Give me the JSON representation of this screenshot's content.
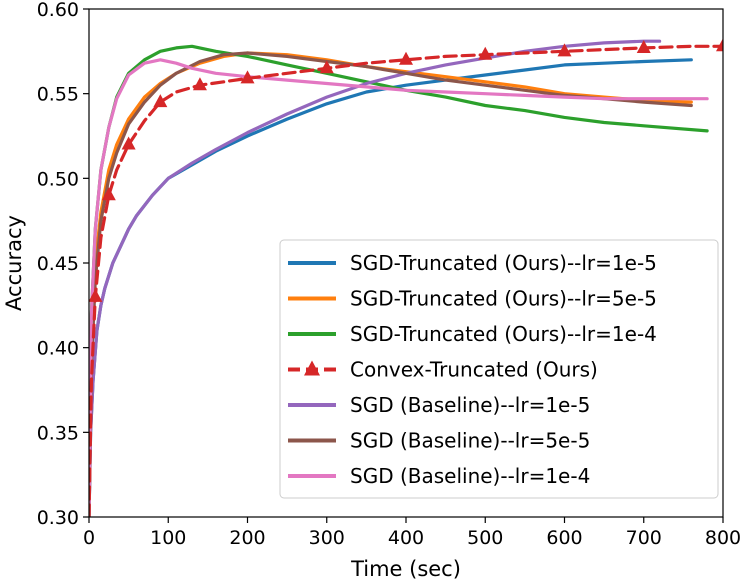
{
  "chart_data": {
    "type": "line",
    "title": "",
    "xlabel": "Time (sec)",
    "ylabel": "Accuracy",
    "xlim": [
      0,
      800
    ],
    "ylim": [
      0.3,
      0.6
    ],
    "xticks": [
      0,
      100,
      200,
      300,
      400,
      500,
      600,
      700,
      800
    ],
    "yticks": [
      0.3,
      0.35,
      0.4,
      0.45,
      0.5,
      0.55,
      0.6
    ],
    "xtick_labels": [
      "0",
      "100",
      "200",
      "300",
      "400",
      "500",
      "600",
      "700",
      "800"
    ],
    "ytick_labels": [
      "0.30",
      "0.35",
      "0.40",
      "0.45",
      "0.50",
      "0.55",
      "0.60"
    ],
    "grid": false,
    "legend_position": "lower-right",
    "series": [
      {
        "name": "SGD-Truncated (Ours)--lr=1e-5",
        "color": "#1f77b4",
        "style": "solid",
        "marker": "none",
        "x": [
          0,
          2,
          5,
          10,
          15,
          20,
          30,
          40,
          50,
          60,
          80,
          100,
          130,
          160,
          200,
          250,
          300,
          350,
          400,
          450,
          500,
          550,
          600,
          650,
          700,
          760
        ],
        "y": [
          0.3,
          0.35,
          0.38,
          0.41,
          0.425,
          0.435,
          0.45,
          0.46,
          0.47,
          0.478,
          0.49,
          0.5,
          0.508,
          0.516,
          0.525,
          0.535,
          0.544,
          0.551,
          0.555,
          0.558,
          0.561,
          0.564,
          0.567,
          0.568,
          0.569,
          0.57
        ]
      },
      {
        "name": "SGD-Truncated (Ours)--lr=5e-5",
        "color": "#ff7f0e",
        "style": "solid",
        "marker": "none",
        "x": [
          0,
          3,
          8,
          15,
          25,
          35,
          50,
          70,
          90,
          110,
          140,
          170,
          200,
          250,
          300,
          350,
          400,
          450,
          500,
          550,
          600,
          650,
          700,
          760
        ],
        "y": [
          0.3,
          0.4,
          0.45,
          0.48,
          0.505,
          0.52,
          0.535,
          0.548,
          0.556,
          0.562,
          0.568,
          0.572,
          0.574,
          0.573,
          0.57,
          0.566,
          0.563,
          0.56,
          0.557,
          0.554,
          0.55,
          0.548,
          0.546,
          0.545
        ]
      },
      {
        "name": "SGD-Truncated (Ours)--lr=1e-4",
        "color": "#2ca02c",
        "style": "solid",
        "marker": "none",
        "x": [
          0,
          3,
          8,
          15,
          25,
          35,
          50,
          70,
          90,
          110,
          130,
          160,
          200,
          250,
          300,
          350,
          400,
          450,
          500,
          550,
          600,
          650,
          700,
          780
        ],
        "y": [
          0.3,
          0.42,
          0.47,
          0.505,
          0.53,
          0.548,
          0.562,
          0.57,
          0.575,
          0.577,
          0.578,
          0.575,
          0.572,
          0.567,
          0.562,
          0.557,
          0.552,
          0.548,
          0.543,
          0.54,
          0.536,
          0.533,
          0.531,
          0.528
        ]
      },
      {
        "name": "Convex-Truncated (Ours)",
        "color": "#d62728",
        "style": "dashed",
        "marker": "triangle",
        "x": [
          0,
          3,
          8,
          15,
          25,
          35,
          50,
          70,
          90,
          110,
          140,
          170,
          200,
          250,
          300,
          350,
          400,
          450,
          500,
          550,
          600,
          650,
          700,
          760,
          800
        ],
        "y": [
          0.3,
          0.38,
          0.43,
          0.465,
          0.49,
          0.505,
          0.52,
          0.534,
          0.545,
          0.551,
          0.555,
          0.557,
          0.559,
          0.562,
          0.565,
          0.568,
          0.57,
          0.572,
          0.573,
          0.574,
          0.575,
          0.576,
          0.577,
          0.578,
          0.578
        ]
      },
      {
        "name": "SGD (Baseline)--lr=1e-5",
        "color": "#9467bd",
        "style": "solid",
        "marker": "none",
        "x": [
          0,
          2,
          5,
          10,
          15,
          20,
          30,
          40,
          50,
          60,
          80,
          100,
          130,
          160,
          200,
          250,
          300,
          350,
          400,
          450,
          500,
          550,
          600,
          650,
          700,
          720
        ],
        "y": [
          0.3,
          0.35,
          0.38,
          0.41,
          0.425,
          0.435,
          0.45,
          0.46,
          0.47,
          0.478,
          0.49,
          0.5,
          0.509,
          0.517,
          0.527,
          0.538,
          0.548,
          0.556,
          0.562,
          0.567,
          0.571,
          0.575,
          0.578,
          0.58,
          0.581,
          0.581
        ]
      },
      {
        "name": "SGD (Baseline)--lr=5e-5",
        "color": "#8c564b",
        "style": "solid",
        "marker": "none",
        "x": [
          0,
          3,
          8,
          15,
          25,
          35,
          50,
          70,
          90,
          110,
          140,
          170,
          200,
          250,
          300,
          350,
          400,
          450,
          500,
          550,
          600,
          650,
          700,
          760
        ],
        "y": [
          0.3,
          0.39,
          0.44,
          0.475,
          0.5,
          0.515,
          0.532,
          0.545,
          0.555,
          0.562,
          0.569,
          0.573,
          0.574,
          0.572,
          0.569,
          0.566,
          0.562,
          0.558,
          0.555,
          0.552,
          0.549,
          0.547,
          0.545,
          0.543
        ]
      },
      {
        "name": "SGD (Baseline)--lr=1e-4",
        "color": "#e377c2",
        "style": "solid",
        "marker": "none",
        "x": [
          0,
          3,
          8,
          15,
          25,
          35,
          50,
          70,
          90,
          110,
          130,
          160,
          200,
          250,
          300,
          350,
          400,
          450,
          500,
          550,
          600,
          650,
          700,
          780
        ],
        "y": [
          0.3,
          0.42,
          0.47,
          0.505,
          0.53,
          0.547,
          0.561,
          0.568,
          0.57,
          0.568,
          0.565,
          0.562,
          0.56,
          0.558,
          0.556,
          0.554,
          0.552,
          0.551,
          0.55,
          0.549,
          0.548,
          0.547,
          0.547,
          0.547
        ]
      }
    ]
  }
}
